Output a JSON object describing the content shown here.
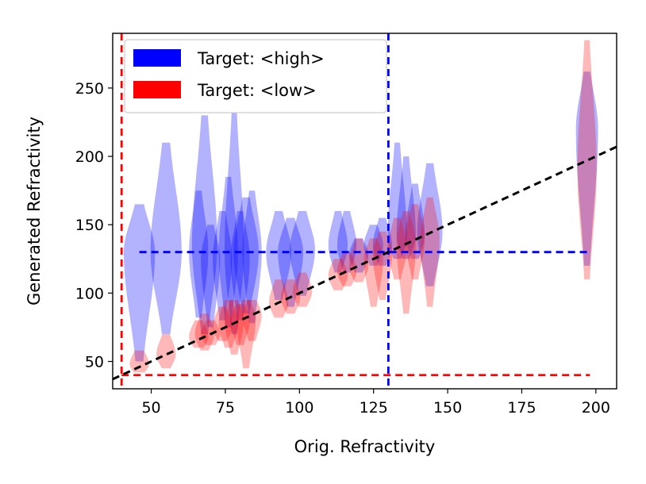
{
  "chart_data": {
    "type": "violin",
    "xlabel": "Orig. Refractivity",
    "ylabel": "Generated Refractivity",
    "xlim": [
      37,
      207
    ],
    "ylim": [
      30,
      290
    ],
    "xticks": [
      50,
      75,
      100,
      125,
      150,
      175,
      200
    ],
    "yticks": [
      50,
      100,
      150,
      200,
      250
    ],
    "legend": {
      "placement": "top-left",
      "entries": [
        {
          "label": "Target: <high>",
          "color": "#0000ff"
        },
        {
          "label": "Target: <low>",
          "color": "#ff0000"
        }
      ]
    },
    "reference_lines": {
      "diagonal": {
        "from": [
          37,
          37
        ],
        "to": [
          207,
          207
        ],
        "color": "#000000",
        "style": "dashed"
      },
      "high_target_vertical_x": 130,
      "high_target_horizontal": {
        "y": 130,
        "x_from": 46,
        "x_to": 198
      },
      "low_target_vertical_x": 40,
      "low_target_horizontal": {
        "y": 40,
        "x_from": 40,
        "x_to": 198
      },
      "high_color": "#0000ff",
      "low_color": "#ff0000"
    },
    "series": [
      {
        "name": "Target: <high>",
        "color": "#0000ff",
        "violins": [
          {
            "x": 46,
            "min": 50,
            "max": 165,
            "median": 130,
            "halfwidth": 5
          },
          {
            "x": 55,
            "min": 70,
            "max": 210,
            "median": 130,
            "halfwidth": 5
          },
          {
            "x": 66,
            "min": 82,
            "max": 175,
            "median": 130,
            "halfwidth": 3
          },
          {
            "x": 68,
            "min": 70,
            "max": 230,
            "median": 135,
            "halfwidth": 4
          },
          {
            "x": 70,
            "min": 75,
            "max": 150,
            "median": 125,
            "halfwidth": 3
          },
          {
            "x": 74,
            "min": 80,
            "max": 160,
            "median": 125,
            "halfwidth": 3
          },
          {
            "x": 76,
            "min": 75,
            "max": 185,
            "median": 130,
            "halfwidth": 3
          },
          {
            "x": 78,
            "min": 70,
            "max": 232,
            "median": 130,
            "halfwidth": 3
          },
          {
            "x": 80,
            "min": 80,
            "max": 160,
            "median": 125,
            "halfwidth": 3
          },
          {
            "x": 82,
            "min": 85,
            "max": 170,
            "median": 130,
            "halfwidth": 4
          },
          {
            "x": 84,
            "min": 78,
            "max": 175,
            "median": 130,
            "halfwidth": 3
          },
          {
            "x": 93,
            "min": 95,
            "max": 160,
            "median": 130,
            "halfwidth": 4
          },
          {
            "x": 97,
            "min": 90,
            "max": 155,
            "median": 130,
            "halfwidth": 4
          },
          {
            "x": 101,
            "min": 98,
            "max": 160,
            "median": 132,
            "halfwidth": 4
          },
          {
            "x": 113,
            "min": 115,
            "max": 160,
            "median": 135,
            "halfwidth": 3
          },
          {
            "x": 116,
            "min": 115,
            "max": 160,
            "median": 135,
            "halfwidth": 3
          },
          {
            "x": 120,
            "min": 115,
            "max": 140,
            "median": 128,
            "halfwidth": 3
          },
          {
            "x": 125,
            "min": 120,
            "max": 150,
            "median": 135,
            "halfwidth": 3
          },
          {
            "x": 128,
            "min": 120,
            "max": 155,
            "median": 135,
            "halfwidth": 3
          },
          {
            "x": 133,
            "min": 125,
            "max": 210,
            "median": 140,
            "halfwidth": 3
          },
          {
            "x": 136,
            "min": 125,
            "max": 200,
            "median": 142,
            "halfwidth": 3
          },
          {
            "x": 139,
            "min": 125,
            "max": 180,
            "median": 142,
            "halfwidth": 3
          },
          {
            "x": 144,
            "min": 105,
            "max": 195,
            "median": 145,
            "halfwidth": 4
          },
          {
            "x": 197,
            "min": 120,
            "max": 262,
            "median": 220,
            "halfwidth": 3.5
          }
        ]
      },
      {
        "name": "Target: <low>",
        "color": "#ff0000",
        "violins": [
          {
            "x": 46,
            "min": 42,
            "max": 58,
            "median": 48,
            "halfwidth": 3
          },
          {
            "x": 55,
            "min": 45,
            "max": 70,
            "median": 55,
            "halfwidth": 3
          },
          {
            "x": 66,
            "min": 60,
            "max": 80,
            "median": 68,
            "halfwidth": 3
          },
          {
            "x": 68,
            "min": 58,
            "max": 85,
            "median": 70,
            "halfwidth": 3
          },
          {
            "x": 70,
            "min": 62,
            "max": 80,
            "median": 70,
            "halfwidth": 3
          },
          {
            "x": 74,
            "min": 65,
            "max": 90,
            "median": 75,
            "halfwidth": 3
          },
          {
            "x": 76,
            "min": 60,
            "max": 95,
            "median": 78,
            "halfwidth": 3
          },
          {
            "x": 78,
            "min": 55,
            "max": 95,
            "median": 80,
            "halfwidth": 3
          },
          {
            "x": 80,
            "min": 62,
            "max": 92,
            "median": 80,
            "halfwidth": 3
          },
          {
            "x": 82,
            "min": 45,
            "max": 95,
            "median": 82,
            "halfwidth": 3
          },
          {
            "x": 84,
            "min": 65,
            "max": 95,
            "median": 84,
            "halfwidth": 3
          },
          {
            "x": 93,
            "min": 82,
            "max": 110,
            "median": 93,
            "halfwidth": 3
          },
          {
            "x": 97,
            "min": 85,
            "max": 110,
            "median": 97,
            "halfwidth": 3
          },
          {
            "x": 101,
            "min": 90,
            "max": 115,
            "median": 101,
            "halfwidth": 3
          },
          {
            "x": 113,
            "min": 102,
            "max": 125,
            "median": 113,
            "halfwidth": 3
          },
          {
            "x": 116,
            "min": 105,
            "max": 130,
            "median": 116,
            "halfwidth": 3
          },
          {
            "x": 120,
            "min": 108,
            "max": 140,
            "median": 120,
            "halfwidth": 3
          },
          {
            "x": 125,
            "min": 90,
            "max": 140,
            "median": 125,
            "halfwidth": 3
          },
          {
            "x": 128,
            "min": 95,
            "max": 145,
            "median": 128,
            "halfwidth": 3
          },
          {
            "x": 133,
            "min": 110,
            "max": 155,
            "median": 133,
            "halfwidth": 3
          },
          {
            "x": 136,
            "min": 85,
            "max": 160,
            "median": 136,
            "halfwidth": 3
          },
          {
            "x": 139,
            "min": 110,
            "max": 165,
            "median": 139,
            "halfwidth": 3
          },
          {
            "x": 144,
            "min": 90,
            "max": 170,
            "median": 140,
            "halfwidth": 3
          },
          {
            "x": 197,
            "min": 110,
            "max": 285,
            "median": 190,
            "halfwidth": 3
          }
        ]
      }
    ]
  }
}
